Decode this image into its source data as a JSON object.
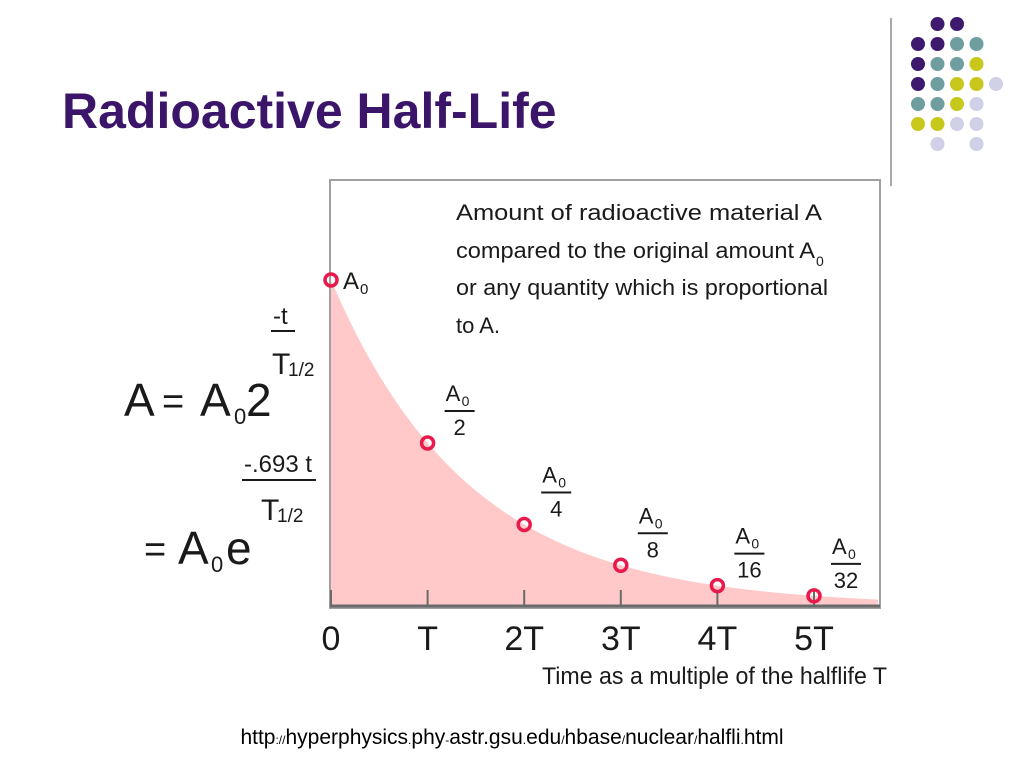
{
  "slide": {
    "title": "Radioactive Half-Life",
    "source_url": {
      "scheme": "http",
      "sep_colon": "://",
      "part1": "hyperphysics",
      "dot1": ".",
      "part2": "phy",
      "dash": "-",
      "part3": "astr.gsu",
      "dot2": ".",
      "part4": "edu",
      "slash1": "/",
      "part5": "hbase",
      "slash2": "/",
      "part6": "nuclear",
      "slash3": "/",
      "part7": "halfli",
      "dot3": ".",
      "part8": "html"
    }
  },
  "decoration": {
    "dot_colors": {
      "purple": "#3d1a6e",
      "teal": "#6f9ea0",
      "yellow": "#c8c81c",
      "lavender": "#d0d0e6"
    },
    "dot_rows": [
      [
        "",
        "purple",
        "purple",
        ""
      ],
      [
        "purple",
        "purple",
        "teal",
        "teal"
      ],
      [
        "purple",
        "teal",
        "teal",
        "yellow"
      ],
      [
        "purple",
        "teal",
        "yellow",
        "yellow",
        "lavender"
      ],
      [
        "teal",
        "teal",
        "yellow",
        "lavender",
        ""
      ],
      [
        "yellow",
        "yellow",
        "lavender",
        "lavender"
      ],
      [
        "",
        "lavender",
        "",
        "lavender"
      ]
    ]
  },
  "chart_data": {
    "type": "scatter",
    "xlabel": "Time as a multiple of the halflife T",
    "x_tick_labels": [
      "0",
      "T",
      "2T",
      "3T",
      "4T",
      "5T"
    ],
    "x": [
      0,
      1,
      2,
      3,
      4,
      5
    ],
    "y_fraction_of_A0": [
      1,
      0.5,
      0.25,
      0.125,
      0.0625,
      0.03125
    ],
    "point_labels": [
      {
        "num": "A",
        "sub": "0",
        "den": ""
      },
      {
        "num": "A",
        "sub": "0",
        "den": "2"
      },
      {
        "num": "A",
        "sub": "0",
        "den": "4"
      },
      {
        "num": "A",
        "sub": "0",
        "den": "8"
      },
      {
        "num": "A",
        "sub": "0",
        "den": "16"
      },
      {
        "num": "A",
        "sub": "0",
        "den": "32"
      }
    ],
    "curve": "exponential decay, shaded area below",
    "colors": {
      "fill": "#ffc9c9",
      "marker": "#e8194b"
    },
    "annotation": {
      "lines": [
        "Amount of radioactive material A",
        "compared to the original amount A",
        "or any quantity which is proportional",
        "to A."
      ],
      "subscript": "0"
    },
    "formula": {
      "A": "A",
      "eq": "=",
      "A0_base": "A",
      "A0_sub": "0",
      "two": "2",
      "exp1_num": "-t",
      "exp1_den_base": "T",
      "exp1_den_sub": "1/2",
      "e": "e",
      "exp2_num": "-.693 t",
      "exp2_den_base": "T",
      "exp2_den_sub": "1/2"
    }
  }
}
